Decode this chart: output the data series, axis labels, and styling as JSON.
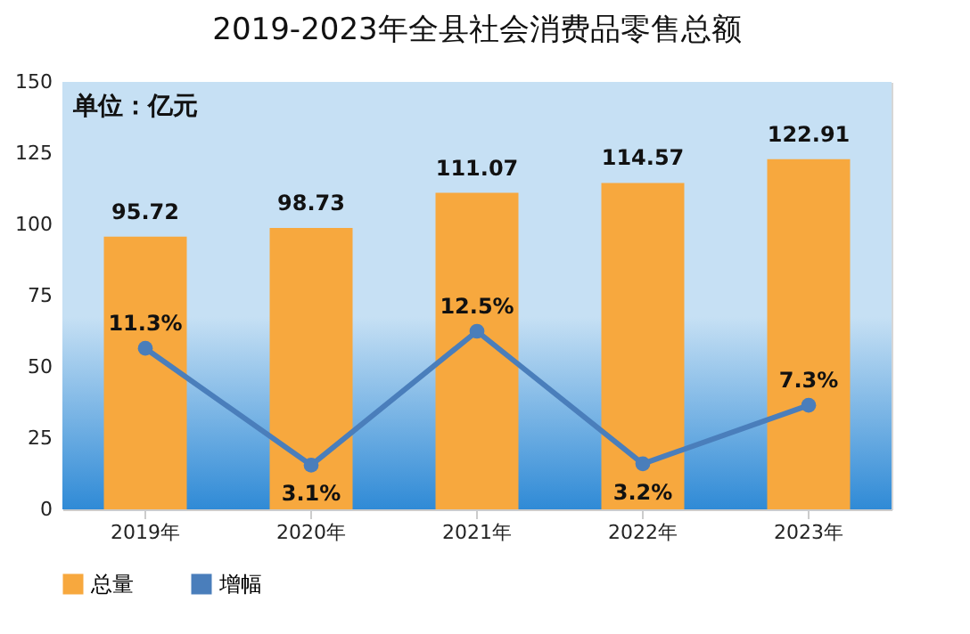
{
  "chart_data": {
    "type": "bar",
    "title": "2019-2023年全县社会消费品零售总额",
    "annotations": [
      "单位：亿元"
    ],
    "categories": [
      "2019年",
      "2020年",
      "2021年",
      "2022年",
      "2023年"
    ],
    "series": [
      {
        "name": "总量",
        "color": "#f7a83e",
        "values": [
          95.72,
          98.73,
          111.07,
          114.57,
          122.91
        ],
        "value_labels": [
          "95.72",
          "98.73",
          "111.07",
          "114.57",
          "122.91"
        ]
      },
      {
        "name": "增幅",
        "type": "line",
        "axis": "y2",
        "color": "#4a7ebb",
        "values": [
          11.3,
          3.1,
          12.5,
          3.2,
          7.3
        ],
        "value_labels": [
          "11.3%",
          "3.1%",
          "12.5%",
          "3.2%",
          "7.3%"
        ]
      }
    ],
    "ylim": [
      0,
      150
    ],
    "yticks": [
      0,
      25,
      50,
      75,
      100,
      125,
      150
    ],
    "y2lim": [
      0,
      30
    ],
    "grid": false,
    "legend": "bottom",
    "marker": "circle"
  }
}
